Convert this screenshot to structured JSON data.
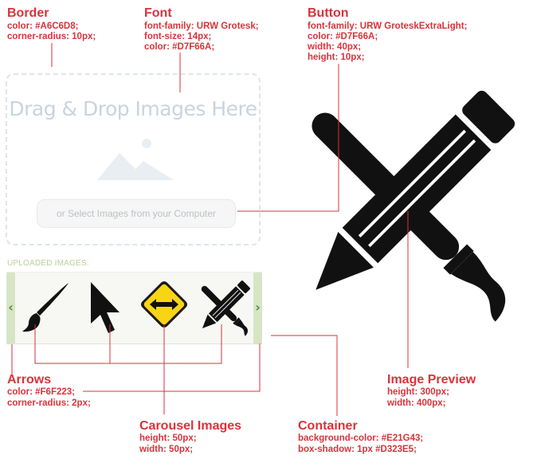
{
  "annotations": {
    "border": {
      "title": "Border",
      "lines": [
        "color: #A6C6D8;",
        "corner-radius: 10px;"
      ]
    },
    "font": {
      "title": "Font",
      "lines": [
        "font-family: URW Grotesk;",
        "font-size: 14px;",
        "color: #D7F66A;"
      ]
    },
    "button": {
      "title": "Button",
      "lines": [
        "font-family: URW GroteskExtraLight;",
        "color: #D7F66A;",
        "width: 40px;",
        "height: 10px;"
      ]
    },
    "arrows": {
      "title": "Arrows",
      "lines": [
        "color: #F6F223;",
        "corner-radius: 2px;"
      ]
    },
    "carousel_images": {
      "title": "Carousel Images",
      "lines": [
        "height: 50px;",
        "width: 50px;"
      ]
    },
    "container": {
      "title": "Container",
      "lines": [
        "background-color: #E21G43;",
        "box-shadow: 1px #D323E5;"
      ]
    },
    "image_preview": {
      "title": "Image Preview",
      "lines": [
        "height: 300px;",
        "width: 400px;"
      ]
    }
  },
  "dropzone": {
    "title": "Drag & Drop Images Here",
    "button_label": "or Select Images from your Computer"
  },
  "uploaded": {
    "label": "UPLOADED IMAGES:",
    "left_arrow": "‹",
    "right_arrow": "›",
    "thumbnails": [
      "paintbrush-icon",
      "cursor-arrow-icon",
      "resize-sign-icon",
      "pencil-brush-icon"
    ]
  },
  "preview": {
    "icon": "pencil-brush-icon"
  },
  "colors": {
    "annotation": "#d8333a",
    "arrow_bg": "#d7e5c6",
    "arrow_fg": "#4f8f3e",
    "sign_yellow": "#f7d515"
  }
}
